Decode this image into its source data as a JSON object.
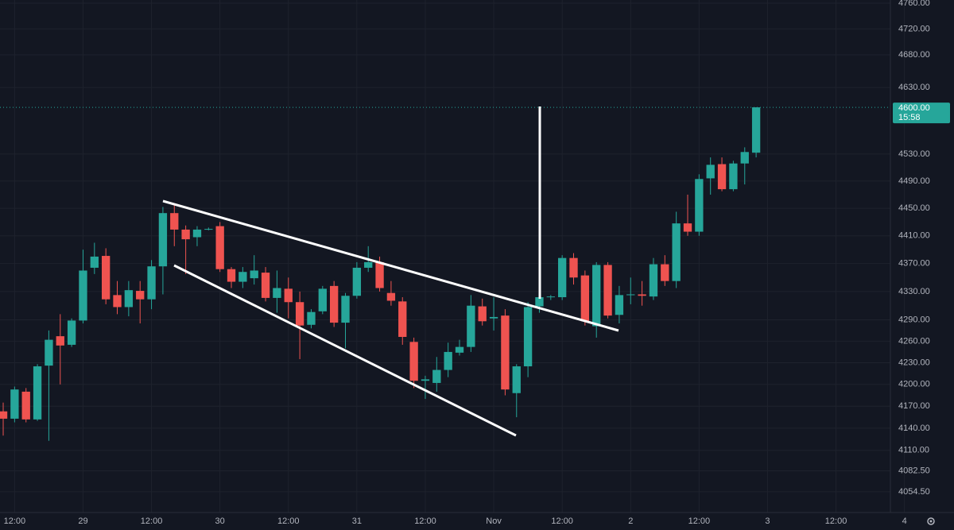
{
  "chart_data": {
    "type": "candlestick",
    "log_scale": true,
    "grid": true,
    "up_color": "#26a69a",
    "down_color": "#ef5350",
    "x": [
      0,
      1,
      2,
      3,
      4,
      5,
      6,
      7,
      8,
      9,
      10,
      11,
      12,
      13,
      14,
      15,
      16,
      17,
      18,
      19,
      20,
      21,
      22,
      23,
      24,
      25,
      26,
      27,
      28,
      29,
      30,
      31,
      32,
      33,
      34,
      35,
      36,
      37,
      38,
      39,
      40,
      41,
      42,
      43,
      44,
      45,
      46,
      47,
      48,
      49,
      50,
      51,
      52,
      53,
      54,
      55,
      56,
      57,
      58,
      59,
      60,
      61,
      62,
      63,
      64,
      65,
      66
    ],
    "open": [
      4163,
      4153,
      4190,
      4152,
      4226,
      4267,
      4255,
      4289,
      4364,
      4381,
      4325,
      4308,
      4331,
      4319,
      4366,
      4443,
      4419,
      4408,
      4419,
      4424,
      4362,
      4344,
      4349,
      4357,
      4321,
      4334,
      4315,
      4283,
      4302,
      4338,
      4286,
      4324,
      4364,
      4372,
      4328,
      4316,
      4259,
      4205,
      4202,
      4220,
      4244,
      4252,
      4309,
      4292,
      4296,
      4188,
      4225,
      4309,
      4322,
      4322,
      4378,
      4353,
      4281,
      4368,
      4297,
      4325,
      4326,
      4323,
      4369,
      4345,
      4428,
      4416,
      4494,
      4515,
      4478,
      4516,
      4532
    ],
    "high": [
      4175,
      4197,
      4195,
      4228,
      4275,
      4298,
      4292,
      4390,
      4400,
      4392,
      4345,
      4345,
      4345,
      4375,
      4452,
      4455,
      4425,
      4424,
      4422,
      4430,
      4365,
      4365,
      4382,
      4365,
      4360,
      4350,
      4330,
      4305,
      4338,
      4345,
      4328,
      4372,
      4395,
      4380,
      4345,
      4322,
      4265,
      4212,
      4238,
      4258,
      4262,
      4325,
      4320,
      4322,
      4305,
      4228,
      4315,
      4348,
      4325,
      4382,
      4385,
      4360,
      4372,
      4372,
      4338,
      4350,
      4345,
      4378,
      4382,
      4445,
      4470,
      4500,
      4525,
      4525,
      4520,
      4540,
      4600
    ],
    "low": [
      4130,
      4148,
      4148,
      4150,
      4123,
      4200,
      4252,
      4285,
      4355,
      4312,
      4298,
      4295,
      4285,
      4305,
      4326,
      4395,
      4355,
      4395,
      4418,
      4358,
      4335,
      4335,
      4340,
      4316,
      4300,
      4292,
      4235,
      4278,
      4298,
      4280,
      4250,
      4320,
      4358,
      4330,
      4310,
      4255,
      4195,
      4180,
      4190,
      4210,
      4240,
      4245,
      4282,
      4275,
      4185,
      4155,
      4210,
      4300,
      4318,
      4318,
      4340,
      4282,
      4265,
      4292,
      4285,
      4312,
      4310,
      4318,
      4338,
      4335,
      4410,
      4410,
      4470,
      4475,
      4475,
      4485,
      4525
    ],
    "close": [
      4153,
      4193,
      4152,
      4225,
      4262,
      4254,
      4289,
      4360,
      4380,
      4319,
      4308,
      4332,
      4319,
      4366,
      4443,
      4419,
      4405,
      4419,
      4420,
      4362,
      4344,
      4358,
      4360,
      4321,
      4335,
      4315,
      4282,
      4301,
      4334,
      4286,
      4324,
      4364,
      4372,
      4335,
      4317,
      4266,
      4205,
      4207,
      4220,
      4245,
      4252,
      4310,
      4288,
      4294,
      4193,
      4225,
      4308,
      4322,
      4323,
      4378,
      4350,
      4288,
      4368,
      4296,
      4325,
      4326,
      4324,
      4369,
      4345,
      4428,
      4416,
      4493,
      4514,
      4478,
      4516,
      4533,
      4600
    ],
    "xlim": [
      -0.28,
      77.77
    ],
    "xticks": [
      {
        "value": 1,
        "label": "12:00"
      },
      {
        "value": 7,
        "label": "29"
      },
      {
        "value": 13,
        "label": "12:00"
      },
      {
        "value": 19,
        "label": "30"
      },
      {
        "value": 25,
        "label": "12:00"
      },
      {
        "value": 31,
        "label": "31"
      },
      {
        "value": 37,
        "label": "12:00"
      },
      {
        "value": 43,
        "label": "Nov"
      },
      {
        "value": 49,
        "label": "12:00"
      },
      {
        "value": 55,
        "label": "2"
      },
      {
        "value": 61,
        "label": "12:00"
      },
      {
        "value": 67,
        "label": "3"
      },
      {
        "value": 73,
        "label": "12:00"
      },
      {
        "value": 79,
        "label": "4"
      }
    ],
    "ylim": [
      4027,
      4765
    ],
    "yticks": [
      {
        "value": 4760,
        "label": "4760.00"
      },
      {
        "value": 4720,
        "label": "4720.00"
      },
      {
        "value": 4680,
        "label": "4680.00"
      },
      {
        "value": 4630,
        "label": "4630.00"
      },
      {
        "value": 4530,
        "label": "4530.00"
      },
      {
        "value": 4490,
        "label": "4490.00"
      },
      {
        "value": 4450,
        "label": "4450.00"
      },
      {
        "value": 4410,
        "label": "4410.00"
      },
      {
        "value": 4370,
        "label": "4370.00"
      },
      {
        "value": 4330,
        "label": "4330.00"
      },
      {
        "value": 4290,
        "label": "4290.00"
      },
      {
        "value": 4260,
        "label": "4260.00"
      },
      {
        "value": 4230,
        "label": "4230.00"
      },
      {
        "value": 4200,
        "label": "4200.00"
      },
      {
        "value": 4170,
        "label": "4170.00"
      },
      {
        "value": 4140,
        "label": "4140.00"
      },
      {
        "value": 4110,
        "label": "4110.00"
      },
      {
        "value": 4082.5,
        "label": "4082.50"
      },
      {
        "value": 4054.5,
        "label": "4054.50"
      }
    ],
    "last_price_label": "4600.00",
    "countdown": "15:58"
  }
}
